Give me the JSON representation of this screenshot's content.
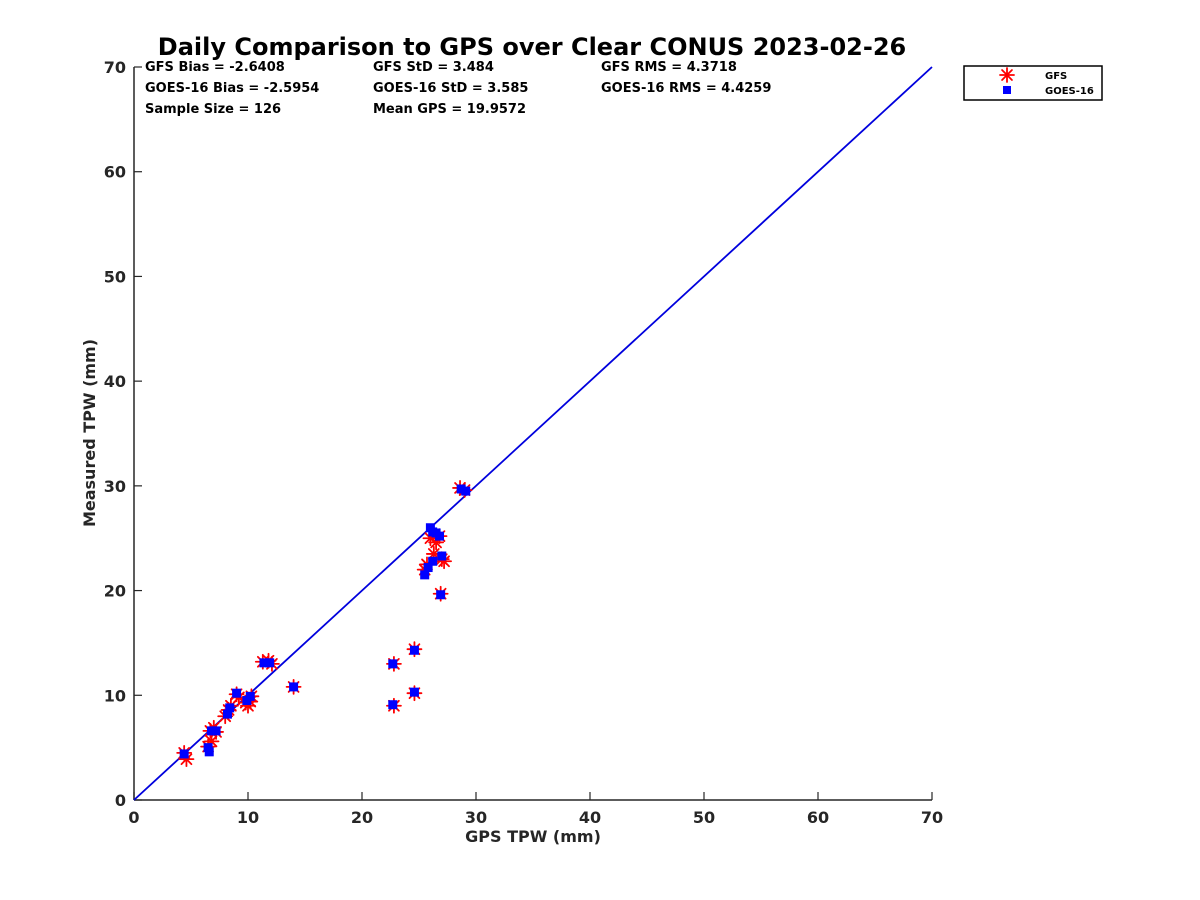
{
  "chart_data": {
    "type": "scatter",
    "title": "Daily Comparison to GPS over Clear CONUS 2023-02-26",
    "xlabel": "GPS TPW (mm)",
    "ylabel": "Measured TPW (mm)",
    "xlim": [
      0,
      70
    ],
    "ylim": [
      0,
      70
    ],
    "xticks": [
      "0",
      "10",
      "20",
      "30",
      "40",
      "50",
      "60",
      "70"
    ],
    "yticks": [
      "0",
      "10",
      "20",
      "30",
      "40",
      "50",
      "60",
      "70"
    ],
    "grid": false,
    "legend_position": "outside top-right",
    "stats": [
      "GFS Bias = -2.6408",
      "GFS StD = 3.484",
      "GFS RMS = 4.3718",
      "GOES-16 Bias = -2.5954",
      "GOES-16 StD = 3.585",
      "GOES-16 RMS = 4.4259",
      "Sample Size = 126",
      "Mean GPS = 19.9572"
    ],
    "reference_line": {
      "name": "1:1 line",
      "x": [
        0,
        70
      ],
      "y": [
        0,
        70
      ],
      "color": "#0000dd"
    },
    "series": [
      {
        "name": "GFS",
        "marker": "asterisk",
        "color": "#ff0000",
        "points": [
          [
            4.4,
            4.5
          ],
          [
            4.6,
            3.9
          ],
          [
            6.5,
            5.1
          ],
          [
            6.8,
            5.6
          ],
          [
            6.7,
            6.6
          ],
          [
            7.0,
            6.9
          ],
          [
            7.2,
            6.5
          ],
          [
            8.0,
            8.0
          ],
          [
            8.3,
            8.6
          ],
          [
            8.5,
            9.0
          ],
          [
            9.0,
            10.1
          ],
          [
            9.2,
            9.8
          ],
          [
            9.8,
            9.3
          ],
          [
            10.0,
            9.0
          ],
          [
            10.2,
            9.4
          ],
          [
            10.3,
            9.9
          ],
          [
            11.3,
            13.2
          ],
          [
            11.8,
            13.3
          ],
          [
            12.1,
            13.0
          ],
          [
            14.0,
            10.8
          ],
          [
            22.8,
            13.0
          ],
          [
            22.8,
            9.0
          ],
          [
            24.6,
            14.4
          ],
          [
            24.6,
            10.2
          ],
          [
            25.5,
            22.0
          ],
          [
            25.7,
            22.5
          ],
          [
            26.0,
            25.0
          ],
          [
            26.3,
            23.5
          ],
          [
            26.5,
            24.6
          ],
          [
            26.8,
            25.2
          ],
          [
            27.0,
            23.0
          ],
          [
            27.2,
            22.8
          ],
          [
            26.9,
            19.7
          ],
          [
            28.6,
            29.8
          ],
          [
            29.0,
            29.6
          ]
        ]
      },
      {
        "name": "GOES-16",
        "marker": "square",
        "color": "#0000ff",
        "points": [
          [
            4.4,
            4.4
          ],
          [
            6.6,
            4.6
          ],
          [
            6.5,
            5.0
          ],
          [
            6.8,
            6.6
          ],
          [
            7.2,
            6.6
          ],
          [
            8.2,
            8.2
          ],
          [
            8.4,
            8.8
          ],
          [
            9.0,
            10.2
          ],
          [
            9.9,
            9.5
          ],
          [
            10.2,
            9.9
          ],
          [
            11.4,
            13.1
          ],
          [
            11.9,
            13.1
          ],
          [
            14.0,
            10.8
          ],
          [
            22.7,
            13.0
          ],
          [
            22.7,
            9.1
          ],
          [
            24.6,
            14.3
          ],
          [
            24.6,
            10.3
          ],
          [
            25.5,
            21.5
          ],
          [
            25.8,
            22.2
          ],
          [
            26.0,
            26.0
          ],
          [
            26.2,
            25.6
          ],
          [
            26.5,
            25.5
          ],
          [
            26.8,
            25.2
          ],
          [
            26.2,
            22.8
          ],
          [
            27.0,
            23.3
          ],
          [
            26.9,
            19.6
          ],
          [
            28.7,
            29.7
          ],
          [
            29.1,
            29.5
          ]
        ]
      }
    ]
  }
}
